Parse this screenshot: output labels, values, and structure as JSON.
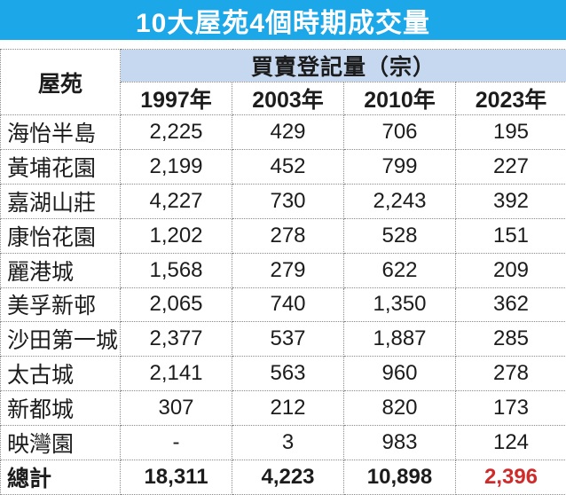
{
  "title": "10大屋苑4個時期成交量",
  "colors": {
    "title_bg": "#1BA7E8",
    "title_text": "#FFFFFF",
    "group_header_bg": "#C6D8F0",
    "shaded_column_bg": "#ECECE2",
    "border": "#8A8A8A",
    "text": "#1C1C1C",
    "highlight_red": "#CF2B2B"
  },
  "table": {
    "corner_header": "屋苑",
    "group_header": "買賣登記量（宗）",
    "year_headers": [
      "1997年",
      "2003年",
      "2010年",
      "2023年"
    ],
    "rows": [
      {
        "estate": "海怡半島",
        "values": [
          "2,225",
          "429",
          "706",
          "195"
        ]
      },
      {
        "estate": "黃埔花園",
        "values": [
          "2,199",
          "452",
          "799",
          "227"
        ]
      },
      {
        "estate": "嘉湖山莊",
        "values": [
          "4,227",
          "730",
          "2,243",
          "392"
        ]
      },
      {
        "estate": "康怡花園",
        "values": [
          "1,202",
          "278",
          "528",
          "151"
        ]
      },
      {
        "estate": "麗港城",
        "values": [
          "1,568",
          "279",
          "622",
          "209"
        ]
      },
      {
        "estate": "美孚新邨",
        "values": [
          "2,065",
          "740",
          "1,350",
          "362"
        ]
      },
      {
        "estate": "沙田第一城",
        "values": [
          "2,377",
          "537",
          "1,887",
          "285"
        ]
      },
      {
        "estate": "太古城",
        "values": [
          "2,141",
          "563",
          "960",
          "278"
        ]
      },
      {
        "estate": "新都城",
        "values": [
          "307",
          "212",
          "820",
          "173"
        ]
      },
      {
        "estate": "映灣園",
        "values": [
          "-",
          "3",
          "983",
          "124"
        ]
      }
    ],
    "total_row": {
      "estate": "總計",
      "values": [
        "18,311",
        "4,223",
        "10,898",
        "2,396"
      ],
      "red_value_index": 3
    }
  },
  "chart_data": {
    "type": "table",
    "title": "10大屋苑4個時期成交量",
    "group_header": "買賣登記量（宗）",
    "columns": [
      "屋苑",
      "1997年",
      "2003年",
      "2010年",
      "2023年"
    ],
    "rows": [
      [
        "海怡半島",
        2225,
        429,
        706,
        195
      ],
      [
        "黃埔花園",
        2199,
        452,
        799,
        227
      ],
      [
        "嘉湖山莊",
        4227,
        730,
        2243,
        392
      ],
      [
        "康怡花園",
        1202,
        278,
        528,
        151
      ],
      [
        "麗港城",
        1568,
        279,
        622,
        209
      ],
      [
        "美孚新邨",
        2065,
        740,
        1350,
        362
      ],
      [
        "沙田第一城",
        2377,
        537,
        1887,
        285
      ],
      [
        "太古城",
        2141,
        563,
        960,
        278
      ],
      [
        "新都城",
        307,
        212,
        820,
        173
      ],
      [
        "映灣園",
        null,
        3,
        983,
        124
      ],
      [
        "總計",
        18311,
        4223,
        10898,
        2396
      ]
    ]
  }
}
